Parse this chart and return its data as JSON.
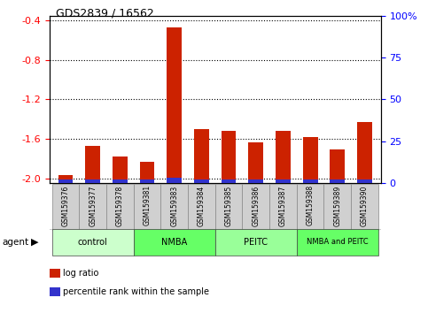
{
  "title": "GDS2839 / 16562",
  "samples": [
    "GSM159376",
    "GSM159377",
    "GSM159378",
    "GSM159381",
    "GSM159383",
    "GSM159384",
    "GSM159385",
    "GSM159386",
    "GSM159387",
    "GSM159388",
    "GSM159389",
    "GSM159390"
  ],
  "log_ratio": [
    -1.97,
    -1.67,
    -1.78,
    -1.83,
    -0.47,
    -1.5,
    -1.52,
    -1.64,
    -1.52,
    -1.58,
    -1.71,
    -1.43
  ],
  "percentile_rank": [
    2,
    2,
    2,
    2,
    3,
    2,
    2,
    2,
    2,
    2,
    2,
    2
  ],
  "ylim_left": [
    -2.05,
    -0.35
  ],
  "yticks_left": [
    -2.0,
    -1.6,
    -1.2,
    -0.8,
    -0.4
  ],
  "yticks_right": [
    0,
    25,
    50,
    75,
    100
  ],
  "yticklabels_right": [
    "0",
    "25",
    "50",
    "75",
    "100%"
  ],
  "groups": [
    {
      "label": "control",
      "start": 0,
      "end": 3,
      "color": "#ccffcc"
    },
    {
      "label": "NMBA",
      "start": 3,
      "end": 6,
      "color": "#66ff66"
    },
    {
      "label": "PEITC",
      "start": 6,
      "end": 9,
      "color": "#99ff99"
    },
    {
      "label": "NMBA and PEITC",
      "start": 9,
      "end": 12,
      "color": "#66ff66"
    }
  ],
  "bar_width": 0.55,
  "red_color": "#cc2200",
  "blue_color": "#3333cc",
  "legend_items": [
    {
      "color": "#cc2200",
      "label": "log ratio"
    },
    {
      "color": "#3333cc",
      "label": "percentile rank within the sample"
    }
  ]
}
